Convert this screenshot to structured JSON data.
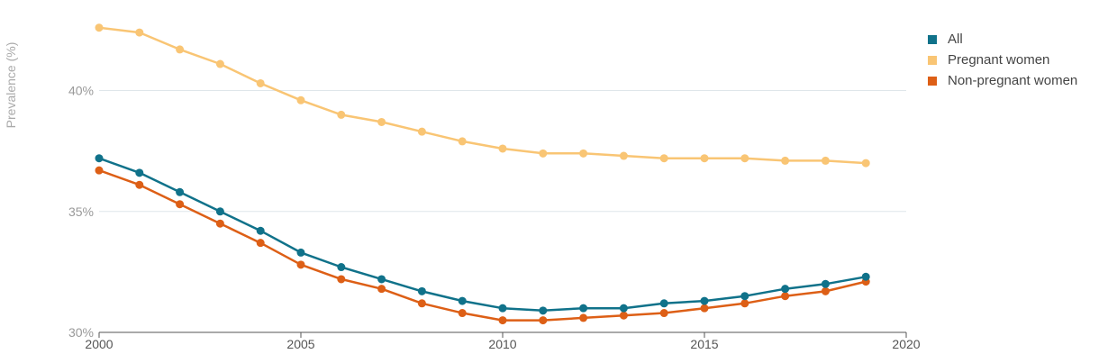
{
  "chart_data": {
    "type": "line",
    "ylabel": "Prevalence (%)",
    "xlim": [
      2000,
      2020
    ],
    "ylim": [
      30,
      43
    ],
    "x_ticks": [
      "2000",
      "2005",
      "2010",
      "2015",
      "2020"
    ],
    "y_ticks": [
      "30%",
      "35%",
      "40%"
    ],
    "grid": "horizontal",
    "legend_position": "top-right",
    "x": [
      2000,
      2001,
      2002,
      2003,
      2004,
      2005,
      2006,
      2007,
      2008,
      2009,
      2010,
      2011,
      2012,
      2013,
      2014,
      2015,
      2016,
      2017,
      2018,
      2019
    ],
    "series": [
      {
        "name": "All",
        "color": "#10728a",
        "values": [
          37.2,
          36.6,
          35.8,
          35.0,
          34.2,
          33.3,
          32.7,
          32.2,
          31.7,
          31.3,
          31.0,
          30.9,
          31.0,
          31.0,
          31.2,
          31.3,
          31.5,
          31.8,
          32.0,
          32.3
        ]
      },
      {
        "name": "Pregnant women",
        "color": "#f9c574",
        "values": [
          42.6,
          42.4,
          41.7,
          41.1,
          40.3,
          39.6,
          39.0,
          38.7,
          38.3,
          37.9,
          37.6,
          37.4,
          37.4,
          37.3,
          37.2,
          37.2,
          37.2,
          37.1,
          37.1,
          37.0
        ]
      },
      {
        "name": "Non-pregnant women",
        "color": "#dd5f16",
        "values": [
          36.7,
          36.1,
          35.3,
          34.5,
          33.7,
          32.8,
          32.2,
          31.8,
          31.2,
          30.8,
          30.5,
          30.5,
          30.6,
          30.7,
          30.8,
          31.0,
          31.2,
          31.5,
          31.7,
          32.1
        ]
      }
    ]
  }
}
